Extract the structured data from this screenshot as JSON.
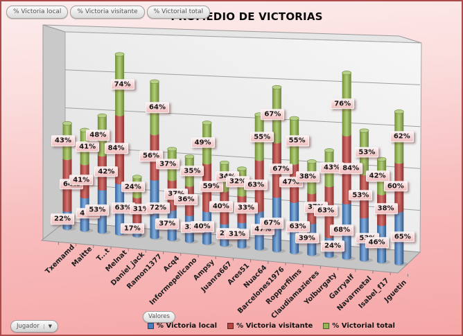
{
  "title": "PROMEDIO DE VICTORIAS",
  "series_toggles": [
    {
      "label": "% Victoria local"
    },
    {
      "label": "% Victoria visitante"
    },
    {
      "label": "% Victorial total"
    }
  ],
  "axis_controls": {
    "values_button": "Valores",
    "category_dropdown": "Jugador"
  },
  "colors": {
    "background_top": "#fdeded",
    "background_bottom": "#f6a7a7",
    "frame_border": "#ad4a4a",
    "wall": "#ededed",
    "floor": "#c6c6c6"
  },
  "chart_data": {
    "type": "bar",
    "variant": "3d-stacked-cylinder",
    "title": "PROMEDIO DE VICTORIAS",
    "xlabel": "Jugador",
    "ylabel": "Valores",
    "legend_position": "bottom",
    "gridlines": true,
    "value_suffix": "%",
    "value_axis_labels": "none",
    "categories": [
      "Txemamd",
      "Maitte",
      "T...t",
      "Melnat",
      "Daniel_jack",
      "Ramon1377",
      "Acq4",
      "Informepelicano",
      "Ampsy",
      "Juanra667",
      "Ares51",
      "Nuac64",
      "Barcelones1976",
      "Ropperfilms",
      "Claudiamazieres",
      "Yolburgaty",
      "Garryalf",
      "Navarmetal",
      "Isabel_f17",
      "Jguetin"
    ],
    "series": [
      {
        "name": "% Victoria local",
        "color": "#4a7ebb",
        "values": [
          22,
          41,
          53,
          63,
          17,
          72,
          37,
          33,
          40,
          27,
          31,
          47,
          67,
          63,
          39,
          24,
          68,
          53,
          46,
          65
        ]
      },
      {
        "name": "% Victoria visitante",
        "color": "#b94441",
        "values": [
          64,
          41,
          42,
          84,
          31,
          56,
          37,
          36,
          59,
          40,
          33,
          63,
          67,
          47,
          37,
          63,
          84,
          53,
          38,
          60
        ]
      },
      {
        "name": "% Victorial total",
        "color": "#94b353",
        "values": [
          43,
          41,
          48,
          74,
          24,
          64,
          37,
          35,
          49,
          34,
          32,
          55,
          67,
          55,
          38,
          43,
          76,
          53,
          42,
          62
        ]
      }
    ]
  }
}
